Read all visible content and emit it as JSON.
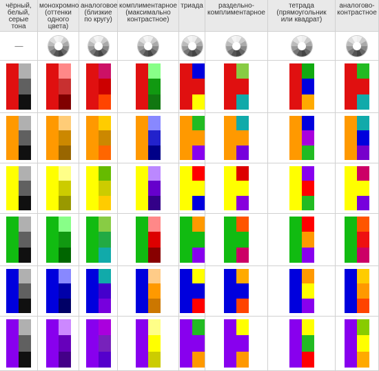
{
  "columns": [
    "чёрный,\nбелый,\nсерые\nтона",
    "монохромное\n(оттенки\nодного цвета)",
    "аналоговое\n(близкие\nпо кругу)",
    "комплиментарное\n(максимально\nконтрастное)",
    "триада",
    "раздельно-\nкомплиментарное",
    "тетрада\n(прямоугольник\nили квадрат)",
    "аналогово-\nконтрастное"
  ],
  "first_col_marker": "------",
  "wheel_icon": "color-wheel-icon",
  "rows": [
    {
      "base": "#ee1111",
      "schemes": [
        {
          "type": "grays",
          "colors": [
            "#e01010",
            "#b0b0b0",
            "#606060",
            "#101010"
          ]
        },
        {
          "type": "mono",
          "colors": [
            "#e01010",
            "#ff8888",
            "#c83030",
            "#800000"
          ]
        },
        {
          "type": "analog",
          "colors": [
            "#e01010",
            "#cc1166",
            "#cc0000",
            "#ff4400"
          ]
        },
        {
          "type": "comp",
          "colors": [
            "#e01010",
            "#88ff88",
            "#119911",
            "#117711"
          ]
        },
        {
          "type": "triad",
          "colors": [
            "#e01010",
            "#0000dd",
            "#ffff00"
          ]
        },
        {
          "type": "split",
          "colors": [
            "#e01010",
            "#88cc44",
            "#11aaaa"
          ]
        },
        {
          "type": "tetrad",
          "colors": [
            "#e01010",
            "#11aa11",
            "#0000dd",
            "#ffaa00"
          ]
        },
        {
          "type": "analogc",
          "colors": [
            "#e01010",
            "#22bb22",
            "#11aaaa"
          ]
        }
      ]
    },
    {
      "base": "#ffa000",
      "schemes": [
        {
          "type": "grays",
          "colors": [
            "#ff9900",
            "#b0b0b0",
            "#606060",
            "#101010"
          ]
        },
        {
          "type": "mono",
          "colors": [
            "#ff9900",
            "#ffcc77",
            "#cc8800",
            "#996600"
          ]
        },
        {
          "type": "analog",
          "colors": [
            "#ff9900",
            "#ffcc00",
            "#cc8800",
            "#ff6600"
          ]
        },
        {
          "type": "comp",
          "colors": [
            "#ff9900",
            "#8888ff",
            "#2222cc",
            "#000088"
          ]
        },
        {
          "type": "triad",
          "colors": [
            "#ff9900",
            "#22bb22",
            "#8800ee"
          ]
        },
        {
          "type": "split",
          "colors": [
            "#ff9900",
            "#11aaaa",
            "#7700dd"
          ]
        },
        {
          "type": "tetrad",
          "colors": [
            "#ff9900",
            "#0000dd",
            "#aa00dd",
            "#22bb22"
          ]
        },
        {
          "type": "analogc",
          "colors": [
            "#ff9900",
            "#11aaaa",
            "#0000dd",
            "#7700cc"
          ]
        }
      ]
    },
    {
      "base": "#ffff00",
      "schemes": [
        {
          "type": "grays",
          "colors": [
            "#ffff00",
            "#b0b0b0",
            "#606060",
            "#101010"
          ]
        },
        {
          "type": "mono",
          "colors": [
            "#ffff00",
            "#ffff88",
            "#cccc00",
            "#999900"
          ]
        },
        {
          "type": "analog",
          "colors": [
            "#ffff00",
            "#66bb00",
            "#cccc00",
            "#ffcc00"
          ]
        },
        {
          "type": "comp",
          "colors": [
            "#ffff00",
            "#bb88ff",
            "#6600cc",
            "#330088"
          ]
        },
        {
          "type": "triad",
          "colors": [
            "#ffff00",
            "#ff0000",
            "#0000dd"
          ]
        },
        {
          "type": "split",
          "colors": [
            "#ffff00",
            "#dd0000",
            "#8800dd"
          ]
        },
        {
          "type": "tetrad",
          "colors": [
            "#ffff00",
            "#8800ee",
            "#ff0000",
            "#22bb22"
          ]
        },
        {
          "type": "analogc",
          "colors": [
            "#ffff00",
            "#cc0066",
            "#7700dd"
          ]
        }
      ]
    },
    {
      "base": "#11bb11",
      "schemes": [
        {
          "type": "grays",
          "colors": [
            "#11bb11",
            "#b0b0b0",
            "#606060",
            "#101010"
          ]
        },
        {
          "type": "mono",
          "colors": [
            "#11bb11",
            "#88ff88",
            "#119911",
            "#006600"
          ]
        },
        {
          "type": "analog",
          "colors": [
            "#11bb11",
            "#88cc44",
            "#22aa44",
            "#11aaaa"
          ]
        },
        {
          "type": "comp",
          "colors": [
            "#11bb11",
            "#ff8888",
            "#dd0000",
            "#880000"
          ]
        },
        {
          "type": "triad",
          "colors": [
            "#11bb11",
            "#ff9900",
            "#8800ee"
          ]
        },
        {
          "type": "split",
          "colors": [
            "#11bb11",
            "#ff5500",
            "#cc0066"
          ]
        },
        {
          "type": "tetrad",
          "colors": [
            "#11bb11",
            "#ff0000",
            "#ff9900",
            "#8800ee"
          ]
        },
        {
          "type": "analogc",
          "colors": [
            "#11bb11",
            "#ff5500",
            "#ee1111",
            "#cc0066"
          ]
        }
      ]
    },
    {
      "base": "#0000dd",
      "schemes": [
        {
          "type": "grays",
          "colors": [
            "#0000dd",
            "#b0b0b0",
            "#606060",
            "#101010"
          ]
        },
        {
          "type": "mono",
          "colors": [
            "#0000dd",
            "#8888ff",
            "#0000aa",
            "#000066"
          ]
        },
        {
          "type": "analog",
          "colors": [
            "#0000dd",
            "#11aaaa",
            "#4400cc",
            "#7700dd"
          ]
        },
        {
          "type": "comp",
          "colors": [
            "#0000dd",
            "#ffcc88",
            "#ff9900",
            "#cc7700"
          ]
        },
        {
          "type": "triad",
          "colors": [
            "#0000dd",
            "#ffff00",
            "#ff0000"
          ]
        },
        {
          "type": "split",
          "colors": [
            "#0000dd",
            "#ffaa00",
            "#ff4400"
          ]
        },
        {
          "type": "tetrad",
          "colors": [
            "#0000dd",
            "#ff9900",
            "#ffff00",
            "#8800ee"
          ]
        },
        {
          "type": "analogc",
          "colors": [
            "#0000dd",
            "#ffcc00",
            "#ff9900",
            "#ff4400"
          ]
        }
      ]
    },
    {
      "base": "#8800ee",
      "schemes": [
        {
          "type": "grays",
          "colors": [
            "#8800ee",
            "#b0b0b0",
            "#606060",
            "#101010"
          ]
        },
        {
          "type": "mono",
          "colors": [
            "#8800ee",
            "#cc88ff",
            "#6600bb",
            "#440088"
          ]
        },
        {
          "type": "analog",
          "colors": [
            "#8800ee",
            "#aa00dd",
            "#7722bb",
            "#5500cc"
          ]
        },
        {
          "type": "comp",
          "colors": [
            "#8800ee",
            "#ffff88",
            "#ffff00",
            "#cccc00"
          ]
        },
        {
          "type": "triad",
          "colors": [
            "#8800ee",
            "#22bb22",
            "#ff9900"
          ]
        },
        {
          "type": "split",
          "colors": [
            "#8800ee",
            "#ffff00",
            "#ff9900"
          ]
        },
        {
          "type": "tetrad",
          "colors": [
            "#8800ee",
            "#ffff00",
            "#22bb22",
            "#ff0000"
          ]
        },
        {
          "type": "analogc",
          "colors": [
            "#8800ee",
            "#88cc00",
            "#ffff00",
            "#ffaa00"
          ]
        }
      ]
    }
  ]
}
